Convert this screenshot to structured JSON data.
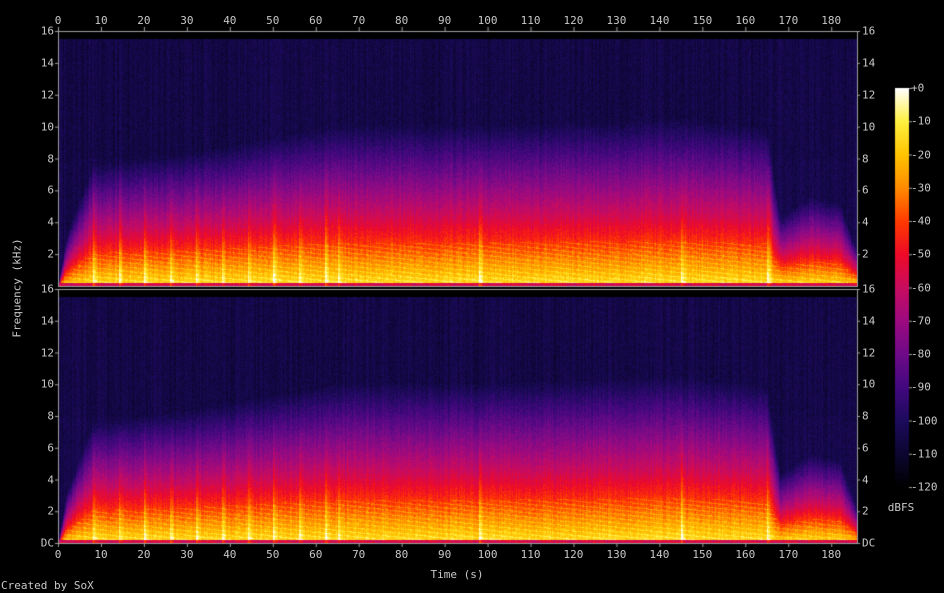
{
  "chart_data": {
    "type": "heatmap",
    "subtype": "spectrogram",
    "channels": 2,
    "xlabel": "Time (s)",
    "ylabel": "Frequency (kHz)",
    "xlim": [
      0,
      186
    ],
    "ylim": [
      0,
      16
    ],
    "x_ticks": [
      "0",
      "10",
      "20",
      "30",
      "40",
      "50",
      "60",
      "70",
      "80",
      "90",
      "100",
      "110",
      "120",
      "130",
      "140",
      "150",
      "160",
      "170",
      "180"
    ],
    "y_ticks": [
      "DC",
      "2",
      "4",
      "6",
      "8",
      "10",
      "12",
      "14",
      "16"
    ],
    "colorbar": {
      "label": "dBFS",
      "range": [
        -120,
        0
      ],
      "ticks": [
        "+0",
        "-10",
        "-20",
        "-30",
        "-40",
        "-50",
        "-60",
        "-70",
        "-80",
        "-90",
        "-100",
        "-110",
        "-120"
      ],
      "colors": [
        "#000000",
        "#0c0630",
        "#1c0a5c",
        "#42087e",
        "#6e0a88",
        "#9c0a80",
        "#c80c60",
        "#ee0a28",
        "#ff3a00",
        "#ff8a00",
        "#ffc400",
        "#fff040",
        "#ffffff"
      ]
    },
    "energy_profile": {
      "time_s": [
        0,
        2,
        8,
        30,
        65,
        100,
        145,
        165,
        168,
        175,
        182,
        186
      ],
      "upper_freq_kHz_at_-60dBFS": [
        0,
        1.5,
        3.5,
        3.8,
        4.6,
        4.6,
        4.8,
        4.5,
        2.0,
        2.6,
        2.4,
        1.0
      ]
    },
    "note_onsets_s": [
      8,
      14,
      20,
      26,
      32,
      38,
      44,
      50,
      56,
      62,
      65,
      98,
      145,
      165
    ]
  },
  "footer": {
    "credit": "Created by SoX"
  }
}
